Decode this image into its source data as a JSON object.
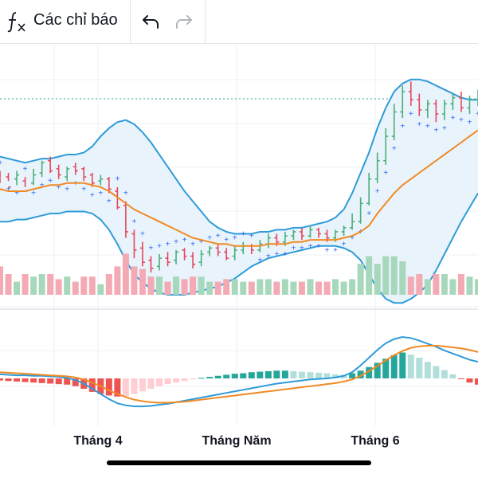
{
  "toolbar": {
    "indicators_label": "Các chỉ báo",
    "fx_icon": "function-fx-icon",
    "undo_icon": "undo-arrow-icon",
    "redo_icon": "redo-arrow-icon"
  },
  "x_axis": {
    "labels": [
      "Tháng 4",
      "Tháng Năm",
      "Tháng 6"
    ]
  },
  "colors": {
    "bollinger": "#2f9bd9",
    "bollinger_fill": "#e8f3fb",
    "ma": "#f08a24",
    "psar": "#2962ff",
    "up": "#4caf78",
    "down": "#e5485a",
    "macd": "#2f9bd9",
    "signal": "#f08a24",
    "grid": "#eef0f4"
  },
  "chart_data": {
    "type": "line",
    "price_panel": {
      "candles_hl": [
        [
          300,
          292,
          301,
          295
        ],
        [
          298,
          293,
          300,
          296
        ],
        [
          297,
          299,
          301,
          294
        ],
        [
          296,
          291,
          298,
          293
        ],
        [
          295,
          299,
          302,
          294
        ],
        [
          300,
          305,
          306,
          298
        ],
        [
          306,
          301,
          308,
          300
        ],
        [
          302,
          299,
          304,
          297
        ],
        [
          298,
          302,
          303,
          296
        ],
        [
          303,
          301,
          305,
          299
        ],
        [
          302,
          298,
          303,
          296
        ],
        [
          299,
          295,
          300,
          293
        ],
        [
          296,
          297,
          299,
          294
        ],
        [
          297,
          292,
          298,
          290
        ],
        [
          291,
          283,
          293,
          282
        ],
        [
          284,
          271,
          286,
          268
        ],
        [
          270,
          262,
          272,
          258
        ],
        [
          263,
          256,
          266,
          254
        ],
        [
          257,
          253,
          259,
          251
        ],
        [
          254,
          258,
          260,
          252
        ],
        [
          258,
          256,
          261,
          254
        ],
        [
          257,
          261,
          262,
          255
        ],
        [
          262,
          259,
          263,
          257
        ],
        [
          259,
          255,
          261,
          253
        ],
        [
          256,
          260,
          262,
          254
        ],
        [
          261,
          263,
          264,
          259
        ],
        [
          263,
          261,
          265,
          259
        ],
        [
          261,
          258,
          263,
          257
        ],
        [
          259,
          262,
          264,
          257
        ],
        [
          262,
          264,
          266,
          260
        ],
        [
          264,
          262,
          265,
          260
        ],
        [
          262,
          265,
          267,
          261
        ],
        [
          265,
          268,
          270,
          263
        ],
        [
          268,
          266,
          270,
          264
        ],
        [
          266,
          269,
          271,
          264
        ],
        [
          269,
          271,
          272,
          267
        ],
        [
          271,
          269,
          273,
          267
        ],
        [
          269,
          272,
          274,
          268
        ],
        [
          272,
          270,
          273,
          268
        ],
        [
          270,
          268,
          272,
          266
        ],
        [
          268,
          271,
          272,
          266
        ],
        [
          271,
          273,
          274,
          269
        ],
        [
          273,
          276,
          280,
          272
        ],
        [
          276,
          285,
          288,
          275
        ],
        [
          285,
          297,
          300,
          284
        ],
        [
          297,
          306,
          310,
          295
        ],
        [
          306,
          318,
          322,
          304
        ],
        [
          318,
          330,
          334,
          316
        ],
        [
          330,
          340,
          343,
          327
        ],
        [
          340,
          336,
          345,
          333
        ],
        [
          336,
          331,
          339,
          328
        ],
        [
          331,
          334,
          336,
          327
        ],
        [
          334,
          329,
          336,
          325
        ],
        [
          329,
          334,
          336,
          326
        ],
        [
          334,
          337,
          339,
          331
        ],
        [
          337,
          332,
          340,
          330
        ],
        [
          332,
          336,
          338,
          329
        ],
        [
          336,
          339,
          341,
          333
        ]
      ],
      "bollinger_upper": [
        308,
        307,
        306,
        305,
        306,
        307,
        307,
        308,
        309,
        309,
        310,
        313,
        318,
        322,
        325,
        326,
        324,
        320,
        315,
        309,
        303,
        297,
        291,
        286,
        281,
        276,
        273,
        271,
        270,
        270,
        270,
        271,
        271,
        272,
        272,
        273,
        273,
        274,
        275,
        276,
        278,
        282,
        290,
        300,
        310,
        322,
        332,
        340,
        344,
        346,
        346,
        345,
        343,
        341,
        339,
        337,
        336,
        336
      ],
      "bollinger_lower": [
        276,
        276,
        277,
        277,
        278,
        279,
        280,
        280,
        281,
        281,
        281,
        280,
        277,
        272,
        265,
        257,
        250,
        246,
        243,
        241,
        240,
        240,
        240,
        241,
        242,
        243,
        244,
        246,
        248,
        251,
        254,
        256,
        258,
        259,
        260,
        261,
        262,
        263,
        264,
        264,
        264,
        263,
        261,
        257,
        250,
        243,
        238,
        236,
        236,
        238,
        241,
        245,
        252,
        260,
        268,
        276,
        283,
        290
      ],
      "moving_average": [
        292,
        291,
        291,
        291,
        292,
        293,
        294,
        294,
        295,
        295,
        295,
        294,
        293,
        291,
        288,
        285,
        282,
        280,
        278,
        276,
        274,
        272,
        270,
        268,
        267,
        266,
        265,
        265,
        264,
        264,
        264,
        264,
        265,
        265,
        265,
        266,
        266,
        267,
        267,
        267,
        267,
        268,
        269,
        271,
        274,
        280,
        285,
        290,
        294,
        297,
        300,
        303,
        306,
        309,
        312,
        315,
        318,
        321
      ]
    },
    "macd_panel": {
      "histogram": [
        -0.4,
        -0.5,
        -0.6,
        -0.7,
        -0.8,
        -0.9,
        -1.0,
        -1.1,
        -1.2,
        -1.5,
        -2.0,
        -2.6,
        -3.0,
        -3.3,
        -3.5,
        -3.4,
        -3.0,
        -2.5,
        -2.0,
        -1.5,
        -1.1,
        -0.8,
        -0.5,
        -0.2,
        0.1,
        0.3,
        0.5,
        0.7,
        0.9,
        1.0,
        1.2,
        1.3,
        1.4,
        1.5,
        1.5,
        1.4,
        1.3,
        1.2,
        1.1,
        1.0,
        0.8,
        0.7,
        1.0,
        1.5,
        2.2,
        3.0,
        3.8,
        4.5,
        5.0,
        4.6,
        4.0,
        3.2,
        2.4,
        1.6,
        0.8,
        -0.1,
        -0.8,
        -1.2
      ],
      "macd": [
        0.8,
        0.7,
        0.6,
        0.6,
        0.5,
        0.5,
        0.4,
        0.3,
        0.1,
        -0.3,
        -1.0,
        -2.0,
        -3.0,
        -4.0,
        -4.8,
        -5.2,
        -5.4,
        -5.4,
        -5.3,
        -5.1,
        -4.9,
        -4.6,
        -4.3,
        -4.0,
        -3.7,
        -3.4,
        -3.1,
        -2.8,
        -2.5,
        -2.2,
        -1.9,
        -1.6,
        -1.3,
        -1.0,
        -0.8,
        -0.6,
        -0.4,
        -0.2,
        -0.1,
        0.0,
        0.2,
        0.5,
        1.2,
        2.5,
        4.0,
        5.5,
        6.8,
        7.6,
        8.0,
        7.8,
        7.3,
        6.7,
        6.1,
        5.4,
        4.8,
        4.2,
        3.6,
        3.2
      ],
      "signal": [
        1.2,
        1.1,
        1.0,
        0.9,
        0.8,
        0.7,
        0.6,
        0.5,
        0.4,
        0.2,
        -0.2,
        -0.8,
        -1.5,
        -2.3,
        -3.0,
        -3.6,
        -4.1,
        -4.4,
        -4.6,
        -4.7,
        -4.7,
        -4.6,
        -4.5,
        -4.3,
        -4.1,
        -3.9,
        -3.7,
        -3.5,
        -3.3,
        -3.1,
        -2.9,
        -2.7,
        -2.5,
        -2.3,
        -2.1,
        -1.9,
        -1.7,
        -1.5,
        -1.3,
        -1.1,
        -0.9,
        -0.6,
        -0.2,
        0.5,
        1.4,
        2.4,
        3.5,
        4.5,
        5.3,
        5.9,
        6.2,
        6.3,
        6.3,
        6.2,
        6.0,
        5.8,
        5.5,
        5.1
      ]
    },
    "xlabel": "",
    "ylabel": "",
    "grid": true
  }
}
